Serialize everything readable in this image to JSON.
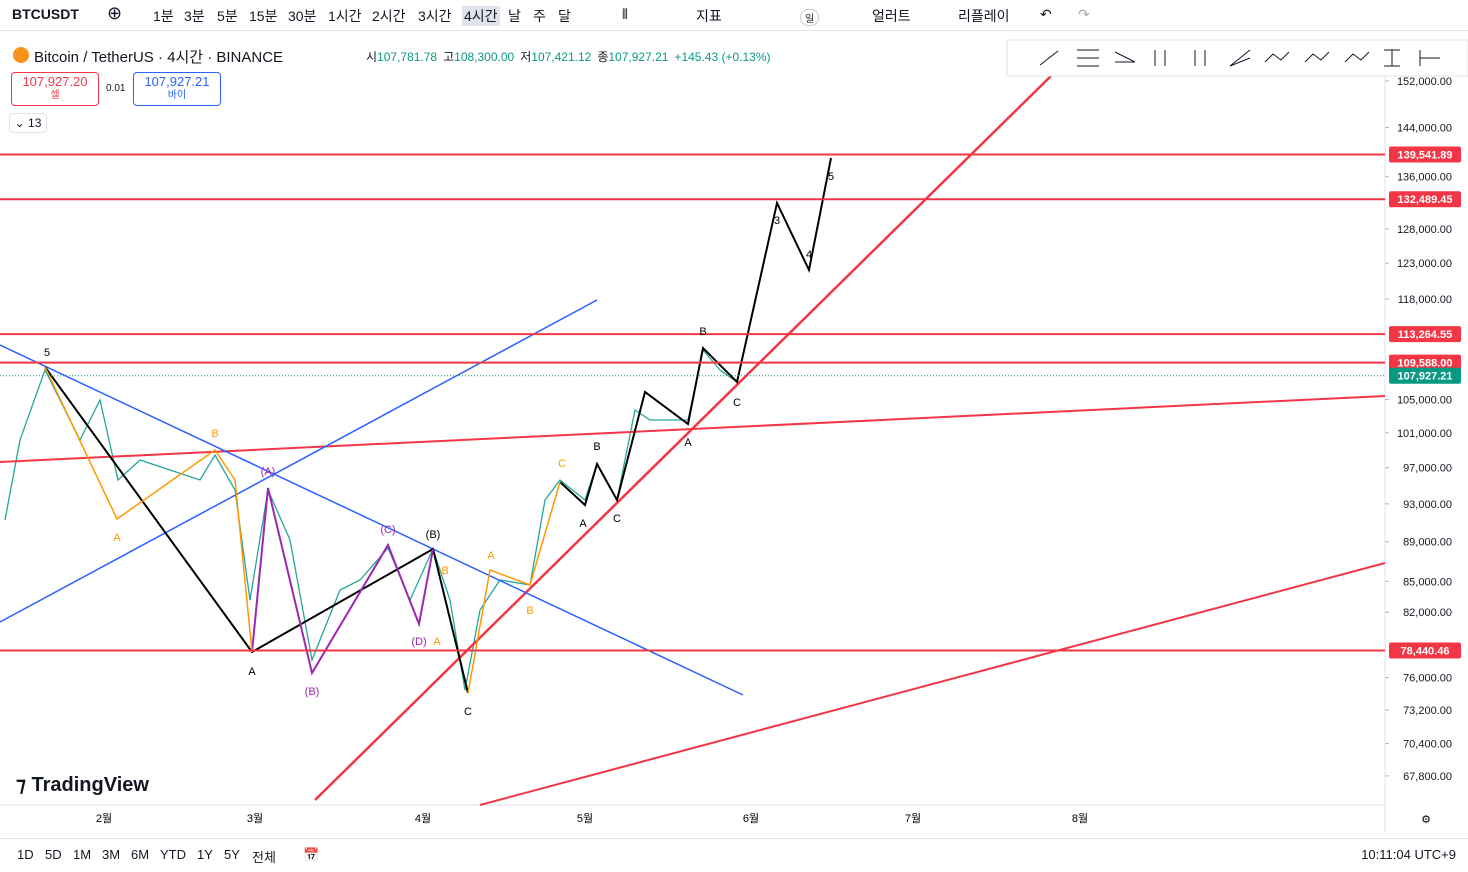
{
  "toolbar": {
    "symbol": "BTCUSDT",
    "intervals": [
      "1분",
      "3분",
      "5분",
      "15분",
      "30분",
      "1시간",
      "2시간",
      "3시간",
      "4시간",
      "날",
      "주",
      "달"
    ],
    "indicators": "지표",
    "day": "일",
    "alert": "얼러트",
    "replay": "리플레이"
  },
  "header": {
    "title": "Bitcoin / TetherUS · 4시간 · BINANCE",
    "ohlc": [
      [
        "시",
        "107,781.78"
      ],
      [
        "고",
        "108,300.00"
      ],
      [
        "저",
        "107,421.12"
      ],
      [
        "종",
        "107,927.21"
      ]
    ],
    "change": "+145.43 (+0.13%)",
    "sell_price": "107,927.20",
    "sell": "셀",
    "spread": "0.01",
    "buy_price": "107,927.21",
    "buy": "바이",
    "indicator_count": "13"
  },
  "price_axis": {
    "log": true,
    "range": [
      65550,
      159400
    ],
    "ticks": [
      {
        "value": 152000,
        "label": "152,000.00"
      },
      {
        "value": 144000,
        "label": "144,000.00"
      },
      {
        "value": 136000,
        "label": "136,000.00"
      },
      {
        "value": 128000,
        "label": "128,000.00"
      },
      {
        "value": 123000,
        "label": "123,000.00"
      },
      {
        "value": 118000,
        "label": "118,000.00"
      },
      {
        "value": 105000,
        "label": "105,000.00"
      },
      {
        "value": 101000,
        "label": "101,000.00"
      },
      {
        "value": 97000,
        "label": "97,000.00"
      },
      {
        "value": 93000,
        "label": "93,000.00"
      },
      {
        "value": 89000,
        "label": "89,000.00"
      },
      {
        "value": 85000,
        "label": "85,000.00"
      },
      {
        "value": 82000,
        "label": "82,000.00"
      },
      {
        "value": 76000,
        "label": "76,000.00"
      },
      {
        "value": 73200,
        "label": "73,200.00"
      },
      {
        "value": 70400,
        "label": "70,400.00"
      },
      {
        "value": 67800,
        "label": "67,800.00"
      }
    ],
    "levels": [
      {
        "value": 139541.89,
        "label": "139,541.89",
        "color": "#f23645"
      },
      {
        "value": 132489.45,
        "label": "132,489.45",
        "color": "#f23645"
      },
      {
        "value": 113264.55,
        "label": "113,264.55",
        "color": "#f23645"
      },
      {
        "value": 109588,
        "label": "109,588.00",
        "color": "#f23645"
      },
      {
        "value": 107927.21,
        "label": "107,927.21",
        "color": "#089981"
      },
      {
        "value": 78440.46,
        "label": "78,440.46",
        "color": "#f23645"
      }
    ]
  },
  "time_axis": [
    "2월",
    "3월",
    "4월",
    "5월",
    "6월",
    "7월",
    "8월"
  ],
  "wave_labels": [
    "5",
    "A",
    "B",
    "A",
    "(A)",
    "(B)",
    "(C)",
    "(D)",
    "(B)",
    "B",
    "A",
    "C",
    "A",
    "B",
    "C",
    "A",
    "B",
    "C",
    "A",
    "B",
    "C",
    "3",
    "4",
    "5"
  ],
  "logo": "TradingView",
  "ranges": [
    "1D",
    "5D",
    "1M",
    "3M",
    "6M",
    "YTD",
    "1Y",
    "5Y",
    "전체"
  ],
  "clock": "10:11:04 UTC+9"
}
